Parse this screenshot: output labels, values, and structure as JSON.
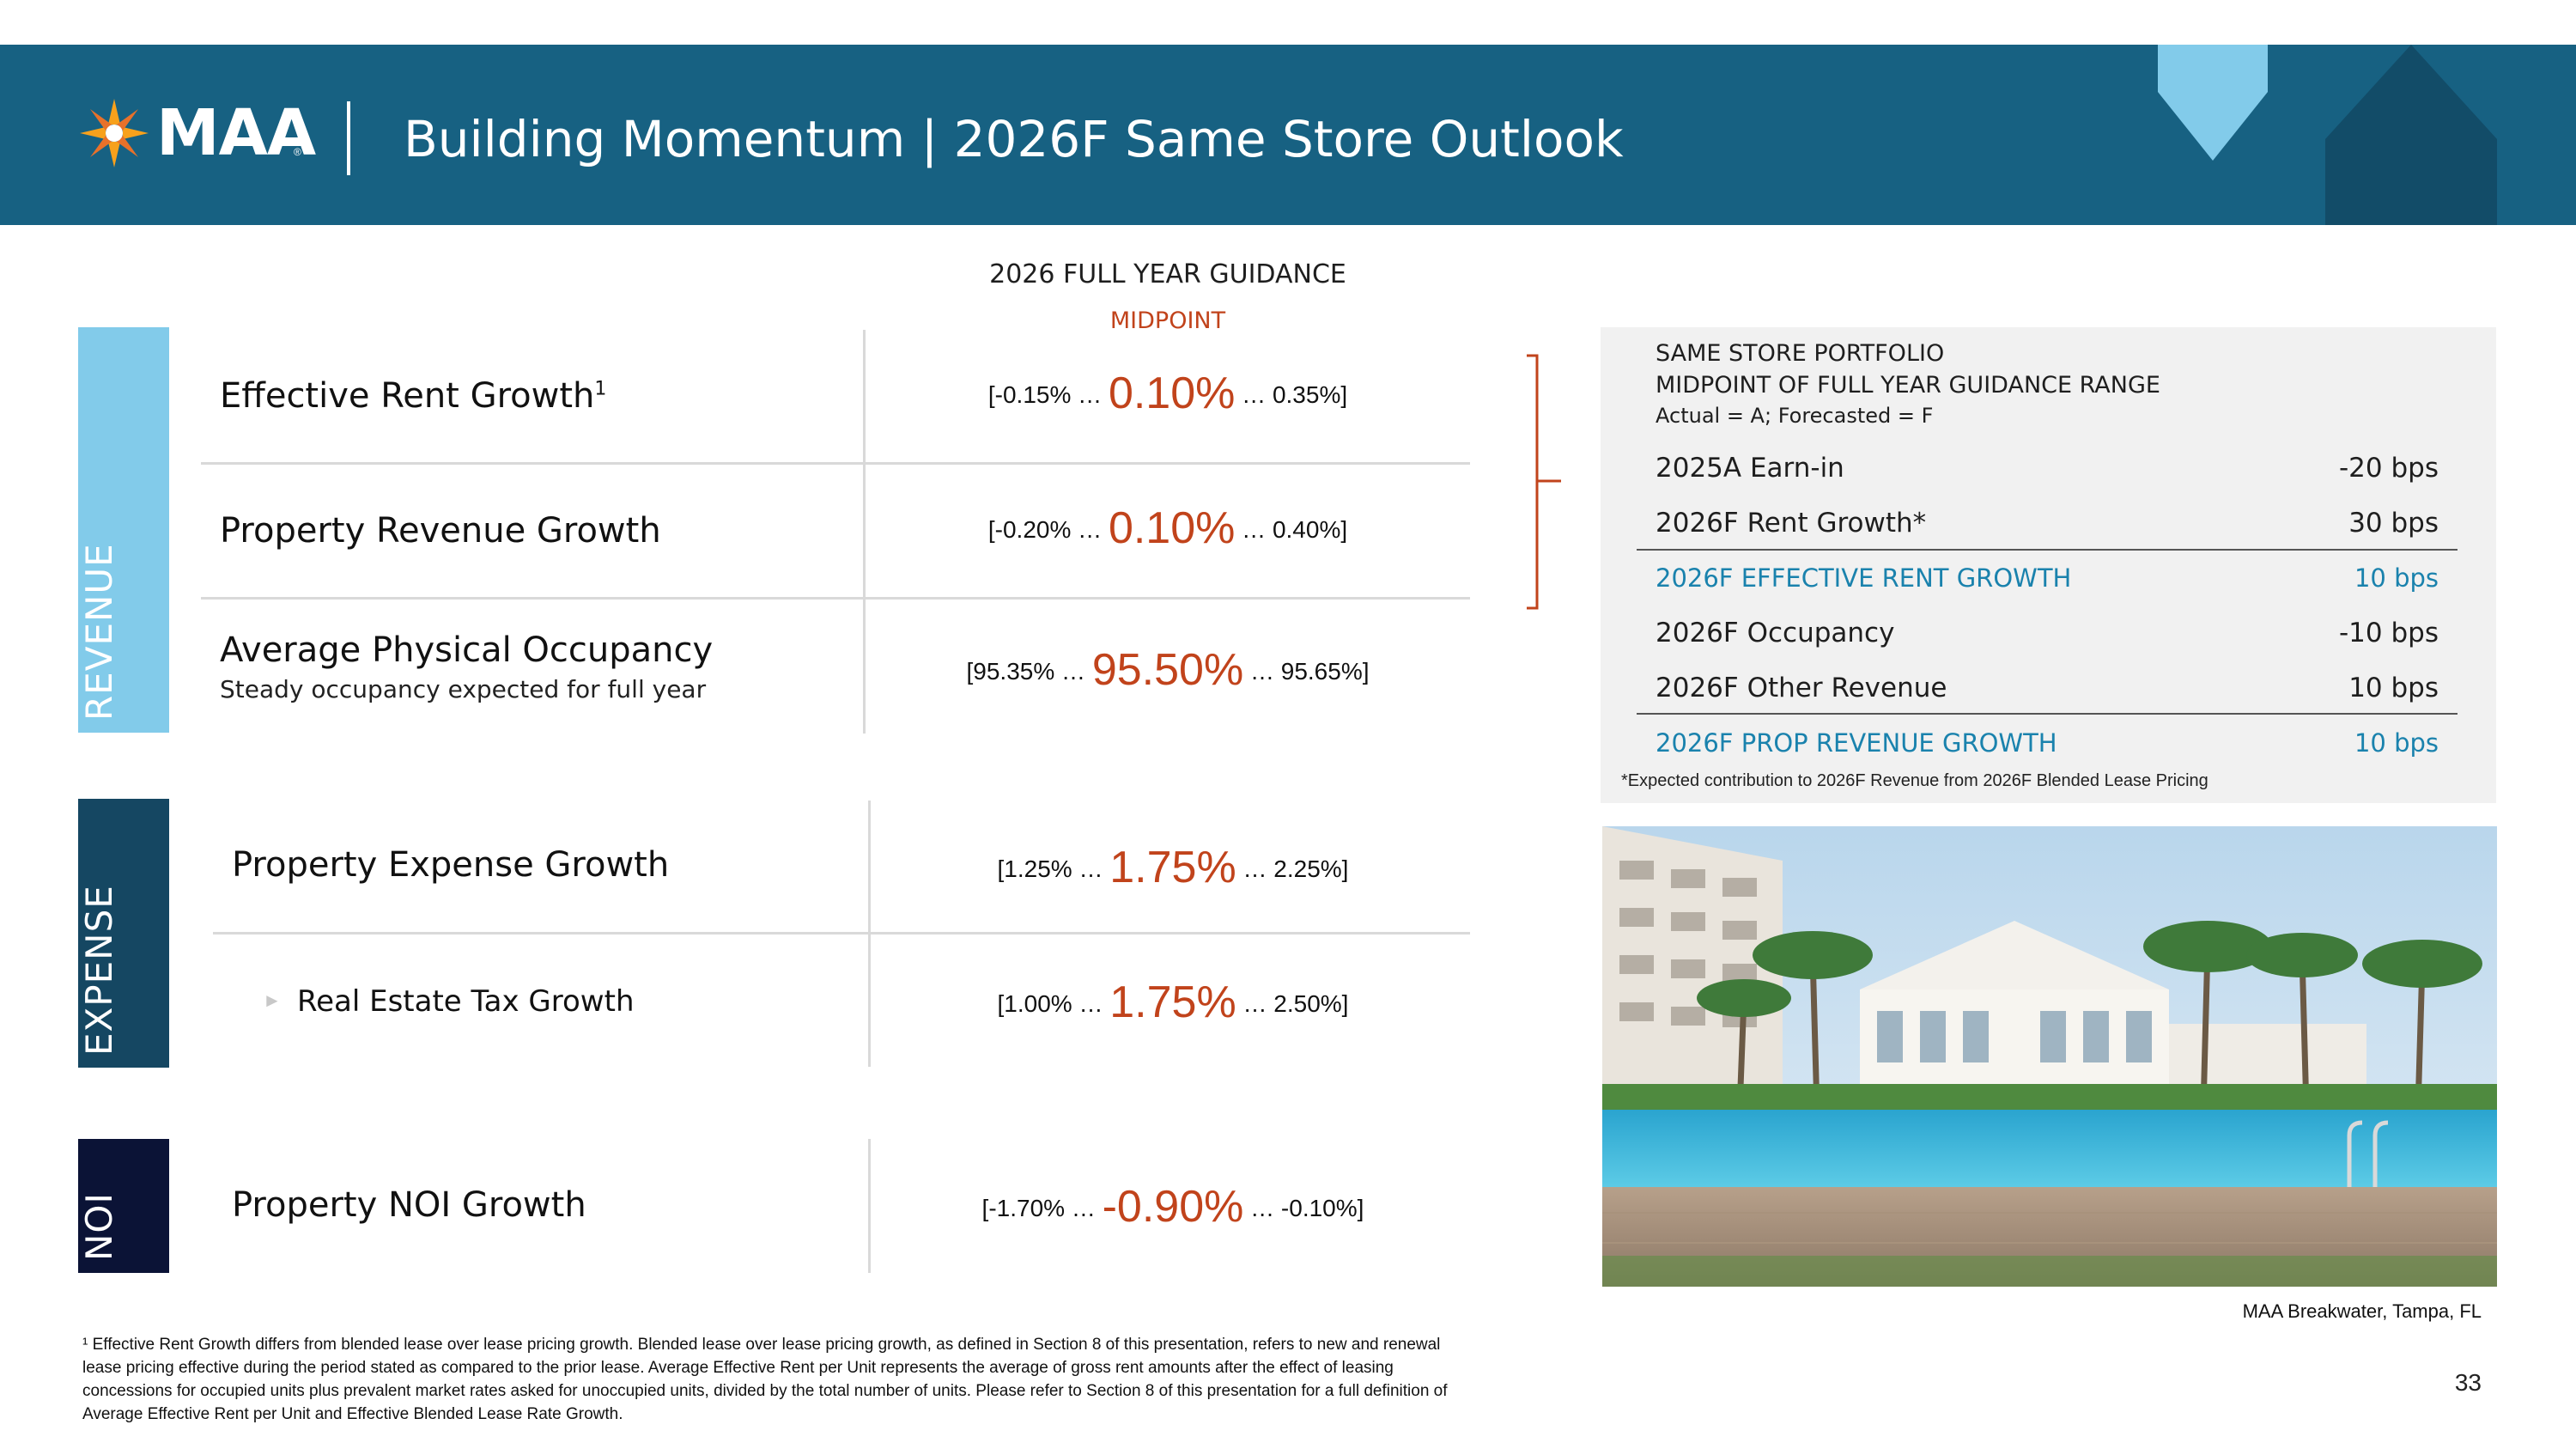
{
  "header": {
    "logo_text": "MAA",
    "logo_reg": "®",
    "title": "Building Momentum | 2026F Same Store Outlook",
    "logo_icon": "sunburst-logo-icon",
    "colors": {
      "header_bg": "#176182",
      "chevron": "#82cbea",
      "house": "#124c68"
    }
  },
  "guidance": {
    "heading": "2026 FULL YEAR GUIDANCE",
    "midpoint_label": "MIDPOINT"
  },
  "categories": {
    "revenue": "REVENUE",
    "expense": "EXPENSE",
    "noi": "NOI"
  },
  "rows": {
    "effective_rent": {
      "label": "Effective Rent Growth",
      "sup": "1",
      "low": "[-0.15% …",
      "mid": "0.10%",
      "high": "… 0.35%]"
    },
    "property_revenue": {
      "label": "Property Revenue Growth",
      "low": "[-0.20% …",
      "mid": "0.10%",
      "high": "… 0.40%]"
    },
    "occupancy": {
      "label": "Average Physical Occupancy",
      "sub": "Steady occupancy expected for full year",
      "low": "[95.35% …",
      "mid": "95.50%",
      "high": "… 95.65%]"
    },
    "property_expense": {
      "label": "Property Expense Growth",
      "low": "[1.25% …",
      "mid": "1.75%",
      "high": "… 2.25%]"
    },
    "real_estate_tax": {
      "label": "Real Estate Tax Growth",
      "bullet": "►",
      "low": "[1.00% …",
      "mid": "1.75%",
      "high": "… 2.50%]"
    },
    "noi": {
      "label": "Property NOI Growth",
      "low": "[-1.70% …",
      "mid": "-0.90%",
      "high": "… -0.10%]"
    }
  },
  "panel": {
    "title_line1": "SAME STORE PORTFOLIO",
    "title_line2": "MIDPOINT OF FULL YEAR GUIDANCE RANGE",
    "title_line3": "Actual = A; Forecasted = F",
    "items": [
      {
        "label": "2025A Earn-in",
        "value": "-20 bps"
      },
      {
        "label": "2026F Rent Growth*",
        "value": "30 bps"
      },
      {
        "label": "2026F EFFECTIVE RENT GROWTH",
        "value": "10 bps"
      },
      {
        "label": "2026F Occupancy",
        "value": "-10 bps"
      },
      {
        "label": "2026F Other Revenue",
        "value": "10 bps"
      },
      {
        "label": "2026F PROP REVENUE GROWTH",
        "value": "10 bps"
      }
    ],
    "note": "*Expected contribution to 2026F Revenue from 2026F Blended Lease Pricing"
  },
  "photo": {
    "caption": "MAA Breakwater, Tampa, FL"
  },
  "footnote": "¹ Effective Rent Growth differs from blended lease over lease pricing growth. Blended lease over lease pricing growth, as defined in Section 8 of this presentation, refers to new and renewal lease pricing effective during the period stated as compared to the prior lease. Average Effective Rent per Unit represents the average of gross rent amounts after the effect of leasing concessions for occupied units plus prevalent market rates asked for unoccupied units, divided by the total number of units. Please refer to Section 8 of this presentation for a full definition of Average Effective Rent per Unit and Effective Blended Lease Rate Growth.",
  "page_number": "33"
}
